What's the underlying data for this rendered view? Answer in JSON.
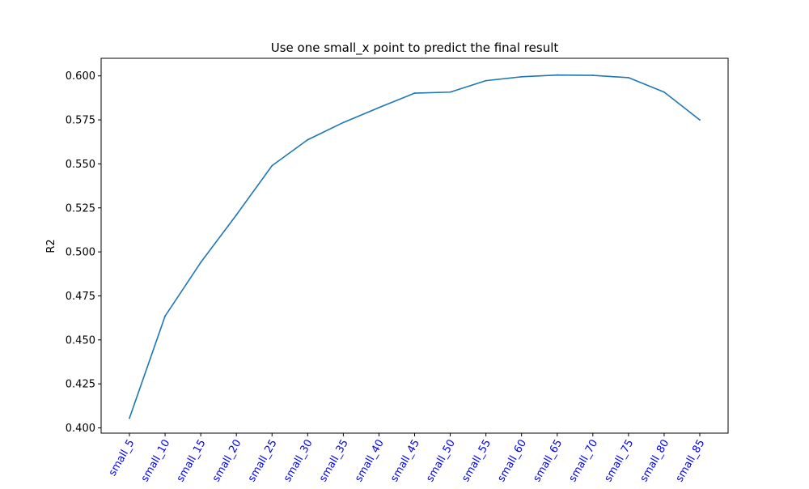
{
  "chart_data": {
    "type": "line",
    "title": "Use one small_x point to predict the final result",
    "xlabel": "",
    "ylabel": "R2",
    "categories": [
      "small_5",
      "small_10",
      "small_15",
      "small_20",
      "small_25",
      "small_30",
      "small_35",
      "small_40",
      "small_45",
      "small_50",
      "small_55",
      "small_60",
      "small_65",
      "small_70",
      "small_75",
      "small_80",
      "small_85"
    ],
    "series": [
      {
        "values": [
          0.4055,
          0.4635,
          0.494,
          0.521,
          0.549,
          0.5637,
          0.5735,
          0.582,
          0.5902,
          0.5908,
          0.5973,
          0.5995,
          0.6005,
          0.6003,
          0.599,
          0.5908,
          0.575
        ],
        "color": "#1f77b4"
      }
    ],
    "ylim": [
      0.397,
      0.61
    ],
    "yticks": [
      0.4,
      0.425,
      0.45,
      0.475,
      0.5,
      0.525,
      0.55,
      0.575,
      0.6
    ],
    "ytick_labels": [
      "0.400",
      "0.425",
      "0.450",
      "0.475",
      "0.500",
      "0.525",
      "0.550",
      "0.575",
      "0.600"
    ],
    "xtick_label_color": "#0000ff",
    "xtick_rotation_deg": 60,
    "grid": false,
    "legend": "none"
  }
}
